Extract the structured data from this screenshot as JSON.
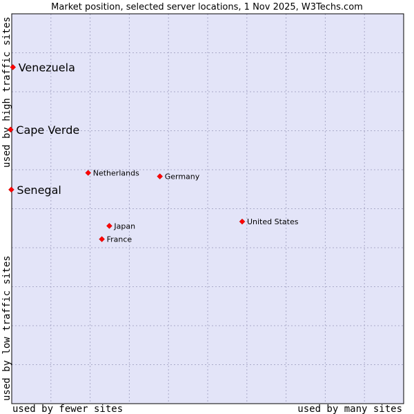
{
  "chart_data": {
    "type": "scatter",
    "title": "Market position, selected server locations, 1 Nov 2025, W3Techs.com",
    "x_axis": {
      "label_left": "used by fewer sites",
      "label_right": "used by many sites",
      "range": [
        0,
        100
      ]
    },
    "y_axis": {
      "label_top": "used by high traffic sites",
      "label_bottom": "used by low traffic sites",
      "range": [
        0,
        100
      ]
    },
    "grid": true,
    "colors": {
      "plot_background": "#e3e4f8",
      "grid": "#a9a9c8",
      "point": "#ff0000"
    },
    "points": [
      {
        "name": "Venezuela",
        "x": 0.3,
        "y": 86.3,
        "emphasis": true
      },
      {
        "name": "Cape Verde",
        "x": -0.3,
        "y": 70.3,
        "emphasis": true
      },
      {
        "name": "Senegal",
        "x": -0.1,
        "y": 54.9,
        "emphasis": true
      },
      {
        "name": "Netherlands",
        "x": 19.5,
        "y": 59.2,
        "emphasis": false
      },
      {
        "name": "Germany",
        "x": 37.8,
        "y": 58.3,
        "emphasis": false
      },
      {
        "name": "United States",
        "x": 58.8,
        "y": 46.7,
        "emphasis": false
      },
      {
        "name": "Japan",
        "x": 24.9,
        "y": 45.6,
        "emphasis": false
      },
      {
        "name": "France",
        "x": 23.0,
        "y": 42.2,
        "emphasis": false
      }
    ]
  }
}
